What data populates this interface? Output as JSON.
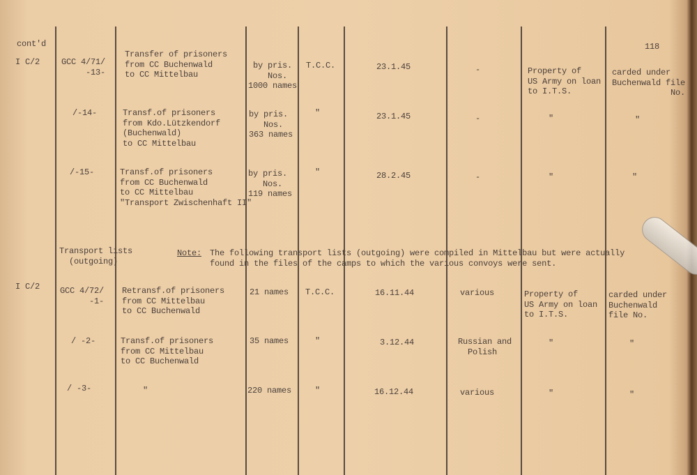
{
  "header": {
    "continued": "cont'd",
    "page_number": "118"
  },
  "section1": {
    "group": "I C/2",
    "rows": [
      {
        "ref": "GCC 4/71/\n     -13-",
        "description": "Transfer of prisoners\nfrom CC Buchenwald\nto CC Mittelbau",
        "quantity": "by pris.\n  Nos.\n1000 names",
        "source": "T.C.C.",
        "date": "23.1.45",
        "nationality": "-",
        "ownership": "Property of\nUS Army on loan\nto I.T.S.",
        "remarks": "carded under\nBuchenwald file\n            No."
      },
      {
        "ref": "/-14-",
        "description": "Transf.of prisoners\nfrom Kdo.Lützkendorf\n(Buchenwald)\nto CC Mittelbau",
        "quantity": "by pris.\n   Nos.\n363 names",
        "source": "\"",
        "date": "23.1.45",
        "nationality": "-",
        "ownership": "\"",
        "remarks": "\""
      },
      {
        "ref": "/-15-",
        "description": "Transf.of prisoners\nfrom CC Buchenwald\nto CC Mittelbau\n\"Transport Zwischenhaft II\"",
        "quantity": "by pris.\n   Nos.\n119 names",
        "source": "\"",
        "date": "28.2.45",
        "nationality": "-",
        "ownership": "\"",
        "remarks": "\""
      }
    ]
  },
  "section2": {
    "heading": "Transport lists\n  (outgoing)",
    "note_label": "Note:",
    "note_text": "The following transport lists (outgoing) were compiled in Mittelbau but were actually\nfound in the files of the camps to which the various convoys were sent.",
    "group": "I C/2",
    "rows": [
      {
        "ref": "GCC 4/72/\n      -1-",
        "description": "Retransf.of prisoners\nfrom CC Mittelbau\nto CC Buchenwald",
        "quantity": "21 names",
        "source": "T.C.C.",
        "date": "16.11.44",
        "nationality": "various",
        "ownership": "Property of\nUS Army on loan\nto I.T.S.",
        "remarks": "carded under\nBuchenwald\nfile No."
      },
      {
        "ref": "/ -2-",
        "description": "Transf.of prisoners\nfrom CC Mittelbau\nto CC Buchenwald",
        "quantity": "35 names",
        "source": "\"",
        "date": "3.12.44",
        "nationality": "Russian and\n  Polish",
        "ownership": "\"",
        "remarks": "\""
      },
      {
        "ref": "/ -3-",
        "description": "\"",
        "quantity": "220 names",
        "source": "\"",
        "date": "16.12.44",
        "nationality": "various",
        "ownership": "\"",
        "remarks": "\""
      }
    ]
  }
}
